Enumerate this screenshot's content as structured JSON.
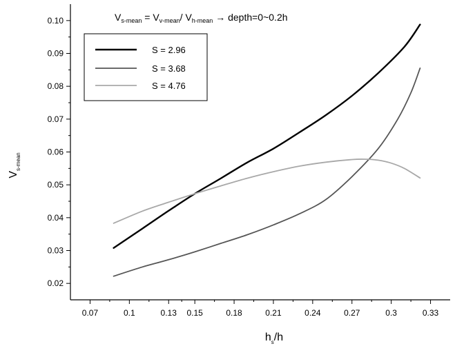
{
  "chart_data": {
    "type": "line",
    "title": "",
    "annotation": {
      "v": "V",
      "s_mean": "s-mean",
      "eq": " = V",
      "v_mean": "v-mean",
      "slash": "/ V",
      "h_mean": "h-mean",
      "rest": " → depth=0~0.2h"
    },
    "xlabel": {
      "main": "h",
      "sub": "s",
      "suffix": "/h"
    },
    "ylabel": {
      "main": "V",
      "sub": "s-mean"
    },
    "xlim": [
      0.055,
      0.345
    ],
    "ylim": [
      0.015,
      0.105
    ],
    "xticks": [
      0.07,
      0.1,
      0.13,
      0.15,
      0.18,
      0.21,
      0.24,
      0.27,
      0.3,
      0.33
    ],
    "xtick_labels": [
      "0.07",
      "0.1",
      "0.13",
      "0.15",
      "0.18",
      "0.21",
      "0.24",
      "0.27",
      "0.3",
      "0.33"
    ],
    "yticks": [
      0.02,
      0.03,
      0.04,
      0.05,
      0.06,
      0.07,
      0.08,
      0.09,
      0.1
    ],
    "ytick_labels": [
      "0.02",
      "0.03",
      "0.04",
      "0.05",
      "0.06",
      "0.07",
      "0.08",
      "0.09",
      "0.10"
    ],
    "grid": false,
    "legend_position": "top-left",
    "series": [
      {
        "name": "S = 2.96",
        "color": "#000000",
        "x": [
          0.088,
          0.11,
          0.13,
          0.15,
          0.17,
          0.19,
          0.21,
          0.23,
          0.25,
          0.27,
          0.29,
          0.31,
          0.322
        ],
        "y": [
          0.0308,
          0.0367,
          0.0421,
          0.0473,
          0.052,
          0.0568,
          0.061,
          0.066,
          0.0712,
          0.0771,
          0.084,
          0.092,
          0.0988
        ]
      },
      {
        "name": "S = 3.68",
        "color": "#555555",
        "x": [
          0.088,
          0.11,
          0.13,
          0.15,
          0.17,
          0.19,
          0.21,
          0.23,
          0.25,
          0.27,
          0.29,
          0.305,
          0.315,
          0.322
        ],
        "y": [
          0.0222,
          0.025,
          0.0272,
          0.0296,
          0.0322,
          0.0348,
          0.0378,
          0.0412,
          0.0455,
          0.0525,
          0.061,
          0.07,
          0.078,
          0.0855
        ]
      },
      {
        "name": "S = 4.76",
        "color": "#a8a8a8",
        "x": [
          0.088,
          0.11,
          0.13,
          0.15,
          0.17,
          0.19,
          0.21,
          0.23,
          0.25,
          0.27,
          0.28,
          0.29,
          0.3,
          0.31,
          0.322
        ],
        "y": [
          0.0383,
          0.042,
          0.0447,
          0.0473,
          0.0497,
          0.052,
          0.054,
          0.0557,
          0.0569,
          0.0577,
          0.0578,
          0.0575,
          0.0566,
          0.055,
          0.0521
        ]
      }
    ]
  }
}
